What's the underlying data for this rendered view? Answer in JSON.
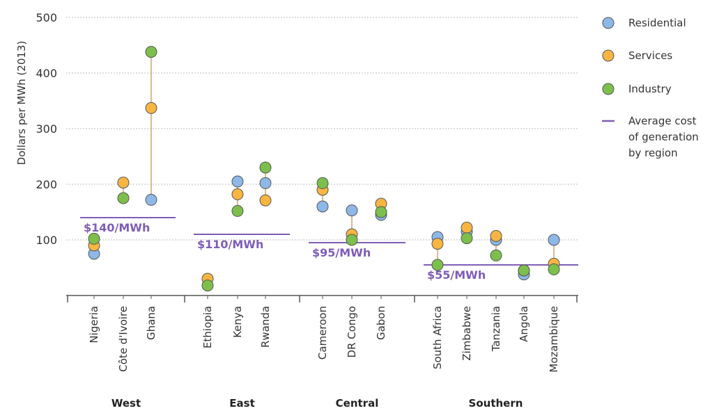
{
  "chart_data": {
    "type": "scatter",
    "title": "",
    "ylabel": "Dollars per MWh (2013)",
    "xlabel": "",
    "ylim": [
      0,
      500
    ],
    "yticks": [
      100,
      200,
      300,
      400,
      500
    ],
    "grid": true,
    "legend_position": "right",
    "colors": {
      "Residential": "#8db8e8",
      "Services": "#f7b542",
      "Industry": "#7cc04b",
      "average": "#7e5db6",
      "connector": "#c9a66b",
      "grid": "#bbbbbb",
      "axis": "#555555"
    },
    "categories": [
      "Nigeria",
      "Côte d'Ivoire",
      "Ghana",
      "Ethiopia",
      "Kenya",
      "Rwanda",
      "Cameroon",
      "DR Congo",
      "Gabon",
      "South Africa",
      "Zimbabwe",
      "Tanzania",
      "Angola",
      "Mozambique"
    ],
    "series": [
      {
        "name": "Residential",
        "values": [
          75,
          null,
          172,
          null,
          205,
          202,
          160,
          153,
          145,
          105,
          115,
          100,
          38,
          100
        ]
      },
      {
        "name": "Services",
        "values": [
          90,
          203,
          337,
          30,
          182,
          171,
          190,
          110,
          165,
          93,
          122,
          107,
          45,
          57
        ]
      },
      {
        "name": "Industry",
        "values": [
          102,
          175,
          438,
          18,
          152,
          230,
          202,
          100,
          150,
          55,
          103,
          72,
          45,
          47
        ]
      }
    ],
    "regions": [
      {
        "name": "West",
        "start": 0,
        "end": 2,
        "average": 140,
        "average_label": "$140/MWh"
      },
      {
        "name": "East",
        "start": 3,
        "end": 5,
        "average": 110,
        "average_label": "$110/MWh"
      },
      {
        "name": "Central",
        "start": 6,
        "end": 8,
        "average": 95,
        "average_label": "$95/MWh"
      },
      {
        "name": "Southern",
        "start": 9,
        "end": 13,
        "average": 55,
        "average_label": "$55/MWh"
      }
    ],
    "legend": [
      {
        "key": "Residential",
        "label": "Residential",
        "marker": "circle"
      },
      {
        "key": "Services",
        "label": "Services",
        "marker": "circle"
      },
      {
        "key": "Industry",
        "label": "Industry",
        "marker": "circle"
      },
      {
        "key": "average",
        "label_lines": [
          "Average cost",
          "of generation",
          "by region"
        ],
        "marker": "line"
      }
    ]
  }
}
